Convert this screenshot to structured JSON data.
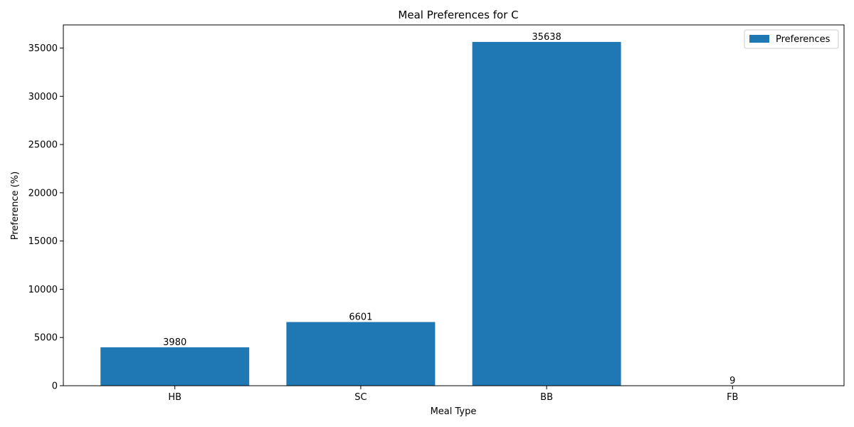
{
  "chart_data": {
    "type": "bar",
    "title": "Meal Preferences for C",
    "xlabel": "Meal Type",
    "ylabel": "Preference (%)",
    "categories": [
      "HB",
      "SC",
      "BB",
      "FB"
    ],
    "series": [
      {
        "name": "Preferences",
        "values": [
          3980,
          6601,
          35638,
          9
        ],
        "color": "#1f77b4"
      }
    ],
    "ylim": [
      0,
      37400
    ],
    "yticks": [
      0,
      5000,
      10000,
      15000,
      20000,
      25000,
      30000,
      35000
    ],
    "grid": false,
    "legend_position": "top-right"
  }
}
